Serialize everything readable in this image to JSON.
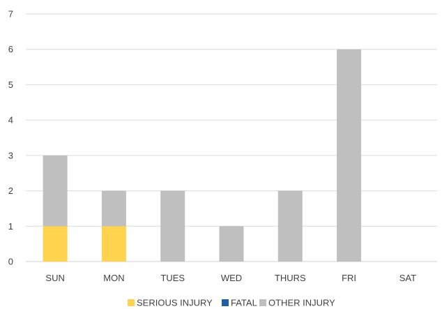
{
  "chart_data": {
    "type": "bar",
    "stacked": true,
    "categories": [
      "SUN",
      "MON",
      "TUES",
      "WED",
      "THURS",
      "FRI",
      "SAT"
    ],
    "series": [
      {
        "name": "SERIOUS INJURY",
        "color": "#FFD34D",
        "values": [
          1,
          1,
          0,
          0,
          0,
          0,
          0
        ]
      },
      {
        "name": "FATAL",
        "color": "#1F5FA6",
        "values": [
          0,
          0,
          0,
          0,
          0,
          0,
          0
        ]
      },
      {
        "name": "OTHER INJURY",
        "color": "#BFBFBF",
        "values": [
          2,
          1,
          2,
          1,
          2,
          6,
          0
        ]
      }
    ],
    "yticks": [
      "0",
      "1",
      "2",
      "3",
      "4",
      "5",
      "6",
      "7"
    ],
    "ylim": [
      0,
      7
    ],
    "grid": true,
    "legend_position": "bottom"
  }
}
